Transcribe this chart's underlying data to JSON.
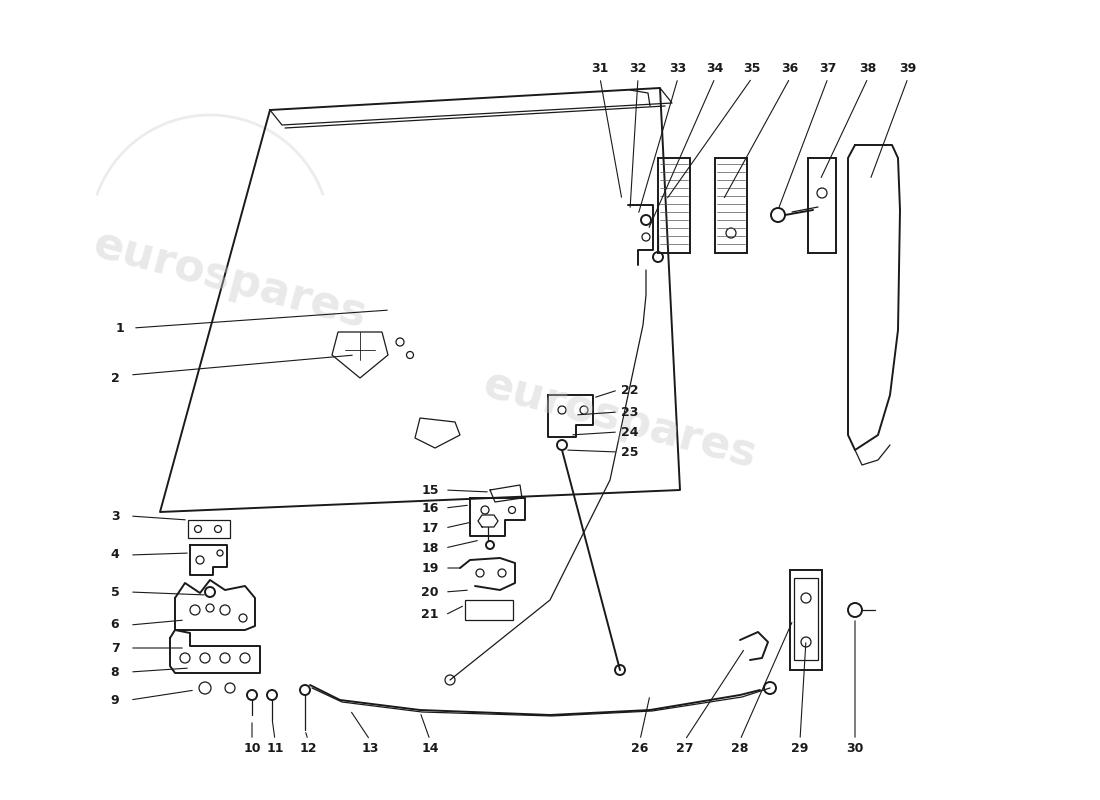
{
  "bg": "#ffffff",
  "lc": "#1a1a1a",
  "wm_color": "#c8c8c8",
  "wm_text": "eurospares",
  "fig_w": 11.0,
  "fig_h": 8.0,
  "dpi": 100
}
